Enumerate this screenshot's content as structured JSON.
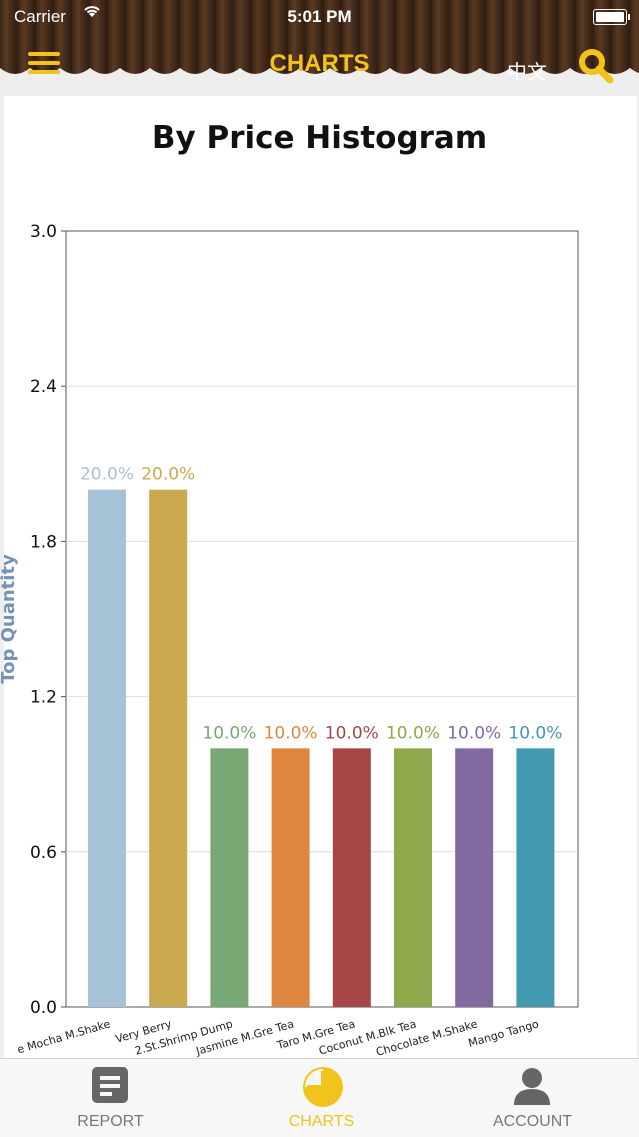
{
  "status_bar": {
    "carrier": "Carrier",
    "time": "5:01 PM"
  },
  "header": {
    "title": "CHARTS",
    "lang_label": "中文"
  },
  "tabs": [
    {
      "label": "REPORT",
      "icon": "report-icon",
      "active": false
    },
    {
      "label": "CHARTS",
      "icon": "pie-chart-icon",
      "active": true
    },
    {
      "label": "ACCOUNT",
      "icon": "account-icon",
      "active": false
    }
  ],
  "colors": {
    "accent": "#f2c31a"
  },
  "chart_data": {
    "type": "bar",
    "title": "By Price Histogram",
    "ylabel": "Top Quantity",
    "xlabel": "",
    "ylim": [
      0,
      3.0
    ],
    "yticks": [
      "0.0",
      "0.6",
      "1.2",
      "1.8",
      "2.4",
      "3.0"
    ],
    "grid": true,
    "categories": [
      "Mocha M.Shake",
      "Very Berry",
      "2.St.Shrimp Dump",
      "Jasmine M.Gre Tea",
      "Taro M.Gre Tea",
      "Coconut M.Blk Tea",
      "Chocolate M.Shake",
      "Mango Tango"
    ],
    "tick_labels": [
      "e Mocha M.Shake",
      "Very Berry",
      "2.St.Shrimp Dump",
      "Jasmine M.Gre Tea",
      "Taro M.Gre Tea",
      "Coconut M.Blk Tea",
      "Chocolate M.Shake",
      "Mango Tango"
    ],
    "values": [
      2,
      2,
      1,
      1,
      1,
      1,
      1,
      1
    ],
    "data_labels": [
      "20.0%",
      "20.0%",
      "10.0%",
      "10.0%",
      "10.0%",
      "10.0%",
      "10.0%",
      "10.0%"
    ],
    "bar_colors": [
      "#a6c2d6",
      "#c9a84f",
      "#78a873",
      "#de8640",
      "#a74646",
      "#8ea84b",
      "#816aa0",
      "#4399b0"
    ]
  }
}
